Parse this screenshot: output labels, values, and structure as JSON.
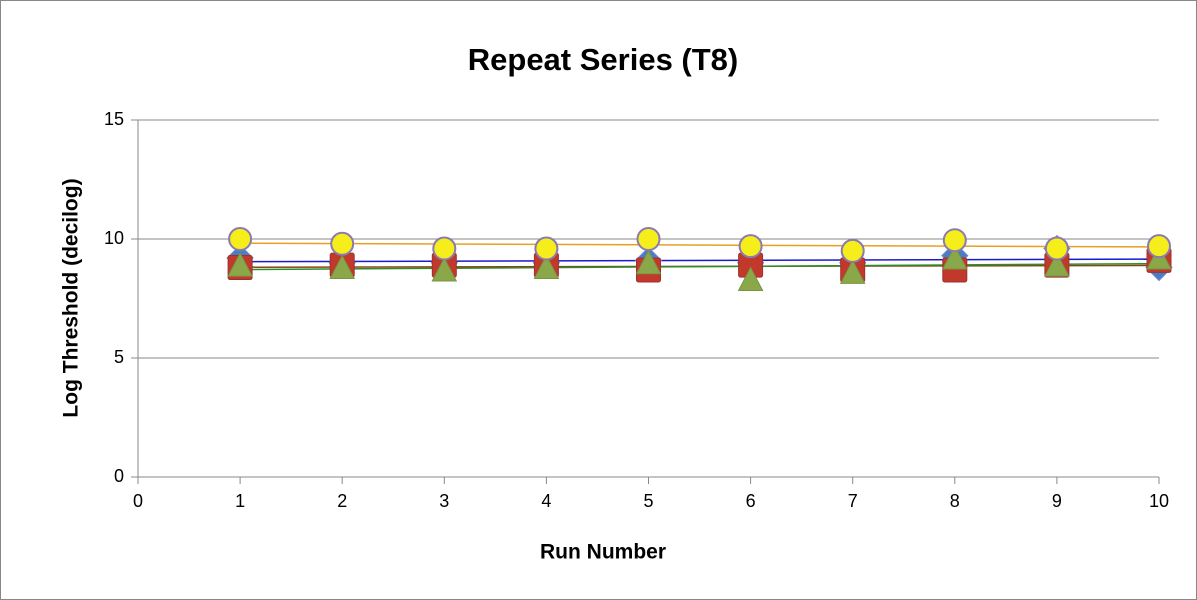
{
  "chart_data": {
    "type": "scatter",
    "title": "Repeat Series (T8)",
    "x_label": "Run Number",
    "y_label": "Log Threshold (decilog)",
    "x": [
      1,
      2,
      3,
      4,
      5,
      6,
      7,
      8,
      9,
      10
    ],
    "series": [
      {
        "color": "#4a7cc7",
        "marker": "diamond",
        "trendline": "linear",
        "trendline_color": "#1a1acc",
        "values": [
          9.2,
          9.0,
          9.0,
          9.0,
          9.1,
          9.0,
          9.0,
          9.3,
          9.6,
          8.8
        ]
      },
      {
        "color": "#c0392b",
        "marker": "square",
        "trendline": "linear",
        "trendline_color": "#8b4513",
        "values": [
          8.8,
          8.9,
          8.9,
          8.9,
          8.7,
          8.9,
          8.7,
          8.7,
          8.9,
          9.1
        ]
      },
      {
        "color": "#8aa84a",
        "marker": "triangle",
        "trendline": "linear",
        "trendline_color": "#2e8b2e",
        "values": [
          8.9,
          8.8,
          8.7,
          8.8,
          9.0,
          8.3,
          8.6,
          9.2,
          8.9,
          9.2
        ]
      },
      {
        "color": "#f5ee1a",
        "marker": "circle",
        "trendline": "linear",
        "trendline_color": "#e8a020",
        "values": [
          10.0,
          9.8,
          9.6,
          9.6,
          10.0,
          9.7,
          9.5,
          9.95,
          9.6,
          9.7
        ]
      }
    ],
    "xlim": [
      0,
      10
    ],
    "xticks": [
      0,
      1,
      2,
      3,
      4,
      5,
      6,
      7,
      8,
      9,
      10
    ],
    "ylim": [
      0,
      15
    ],
    "yticks": [
      0,
      5,
      10,
      15
    ],
    "grid": true
  }
}
